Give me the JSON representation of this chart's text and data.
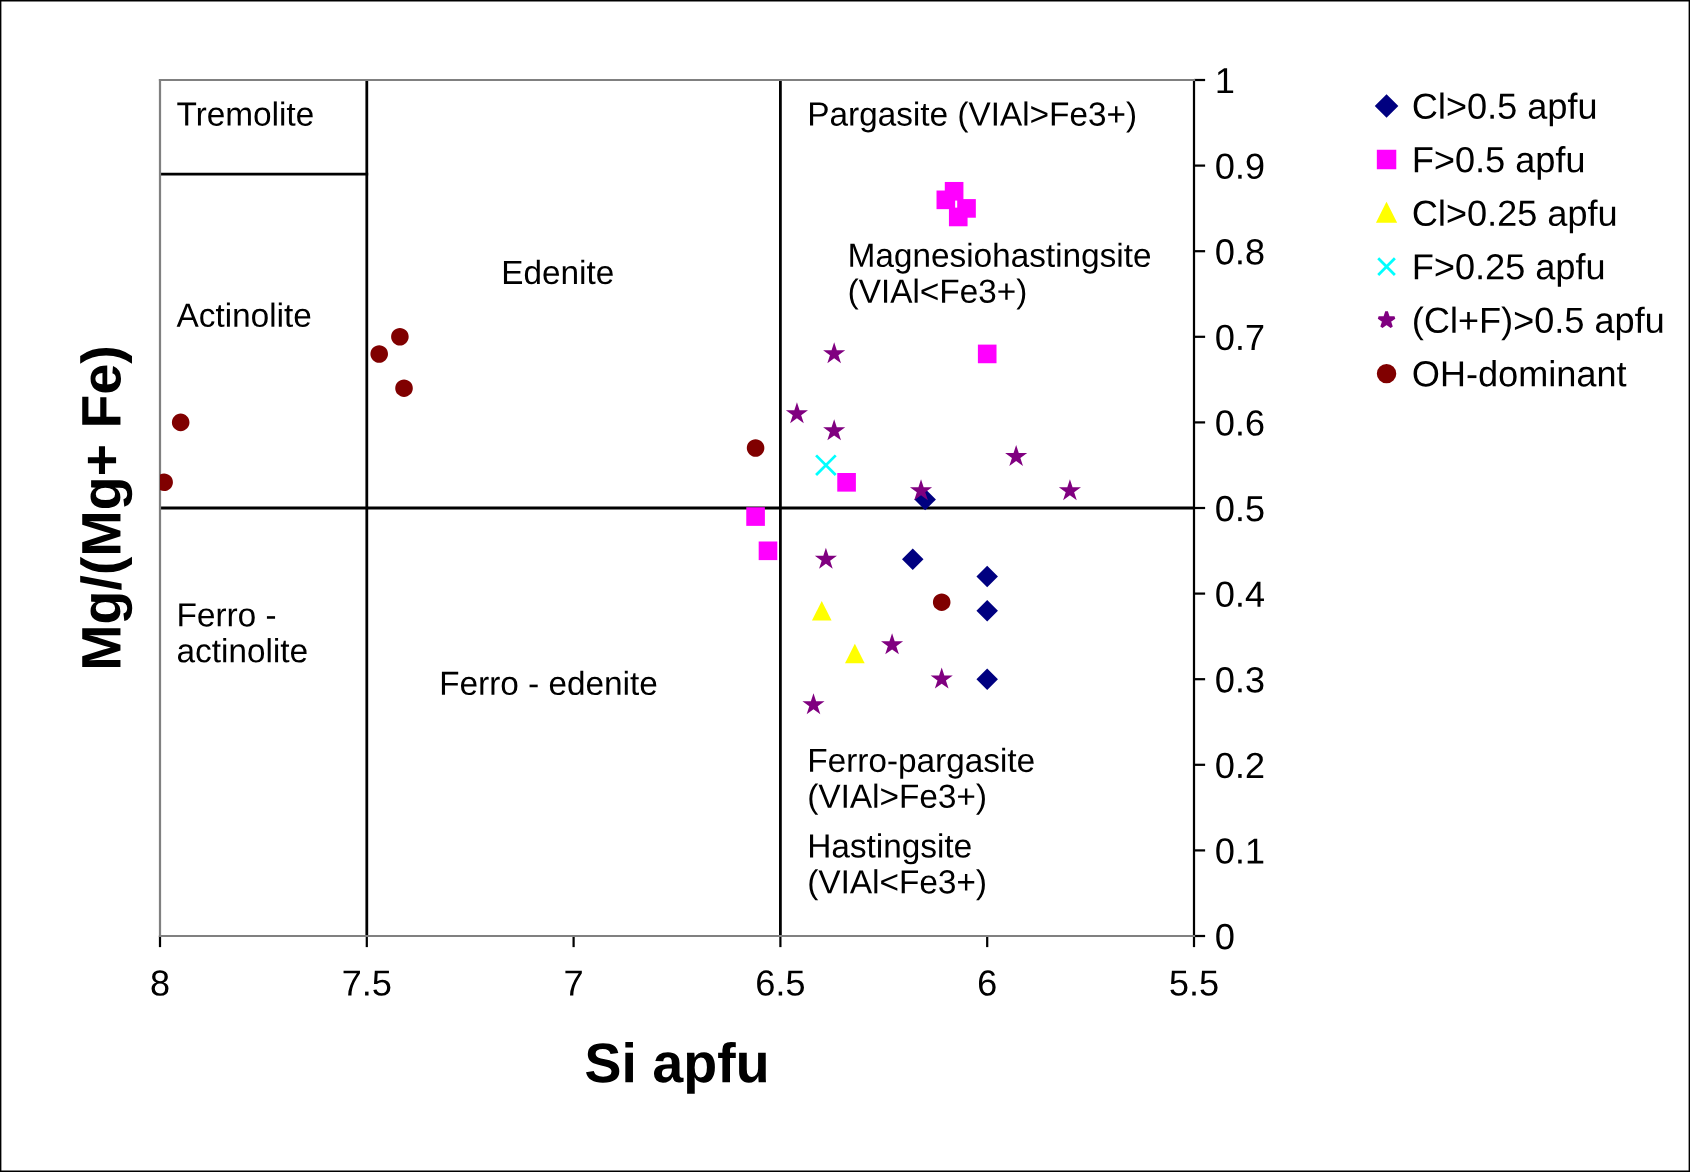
{
  "chart_data": {
    "type": "scatter",
    "xlabel": "Si apfu",
    "ylabel": "Mg/(Mg+ Fe)",
    "xlim": [
      8,
      5.5
    ],
    "xticks": [
      8,
      7.5,
      7,
      6.5,
      6,
      5.5
    ],
    "ylim": [
      0,
      1
    ],
    "yticks": [
      0,
      0.1,
      0.2,
      0.3,
      0.4,
      0.5,
      0.6,
      0.7,
      0.8,
      0.9,
      1
    ],
    "grid": false,
    "legend": "right",
    "series": [
      {
        "name": "Cl>0.5 apfu",
        "color": "#000080",
        "marker": "diamond",
        "x": [
          6.15,
          6.18,
          6.0,
          6.0,
          6.0
        ],
        "values": [
          0.51,
          0.44,
          0.42,
          0.38,
          0.3
        ]
      },
      {
        "name": "F>0.5 apfu",
        "color": "#ff00ff",
        "marker": "square",
        "x": [
          6.1,
          6.08,
          6.05,
          6.07,
          6.0,
          6.34,
          6.56,
          6.53
        ],
        "values": [
          0.86,
          0.87,
          0.85,
          0.84,
          0.68,
          0.53,
          0.49,
          0.45
        ]
      },
      {
        "name": "Cl>0.25 apfu",
        "color": "#ffff00",
        "marker": "triangle",
        "x": [
          6.4,
          6.32
        ],
        "values": [
          0.38,
          0.33
        ]
      },
      {
        "name": "F>0.25 apfu",
        "color": "#00ffff",
        "marker": "cross",
        "x": [
          6.39
        ],
        "values": [
          0.55
        ]
      },
      {
        "name": "(Cl+F)>0.5 apfu",
        "color": "#800080",
        "marker": "star",
        "x": [
          6.37,
          6.46,
          6.37,
          6.16,
          5.93,
          5.8,
          6.39,
          6.23,
          6.11,
          6.42
        ],
        "values": [
          0.68,
          0.61,
          0.59,
          0.52,
          0.56,
          0.52,
          0.44,
          0.34,
          0.3,
          0.27
        ]
      },
      {
        "name": "OH-dominant",
        "color": "#800000",
        "marker": "circle",
        "x": [
          7.99,
          7.95,
          7.47,
          7.42,
          7.41,
          6.56,
          6.11
        ],
        "values": [
          0.53,
          0.6,
          0.68,
          0.7,
          0.64,
          0.57,
          0.39
        ]
      },
      {
        "type": "line",
        "color": "#000000",
        "marker": "none",
        "x": [
          8,
          7.5
        ],
        "values": [
          0.89,
          0.89
        ]
      }
    ],
    "ref_lines": [
      {
        "axis": "y",
        "value": 0.5,
        "color": "#000000"
      },
      {
        "axis": "x",
        "value": 7.5,
        "color": "#000000"
      },
      {
        "axis": "x",
        "value": 6.5,
        "color": "#000000"
      }
    ],
    "annotations": [
      "Tremolite",
      "Actinolite",
      "Edenite",
      "Pargasite (VIAl>Fe3+)",
      "Magnesiohastingsite\n(VIAl<Fe3+)",
      "Ferro -\nactinolite",
      "Ferro - edenite",
      "Ferro-pargasite\n(VIAl>Fe3+)",
      "Hastingsite\n(VIAl<Fe3+)"
    ]
  }
}
